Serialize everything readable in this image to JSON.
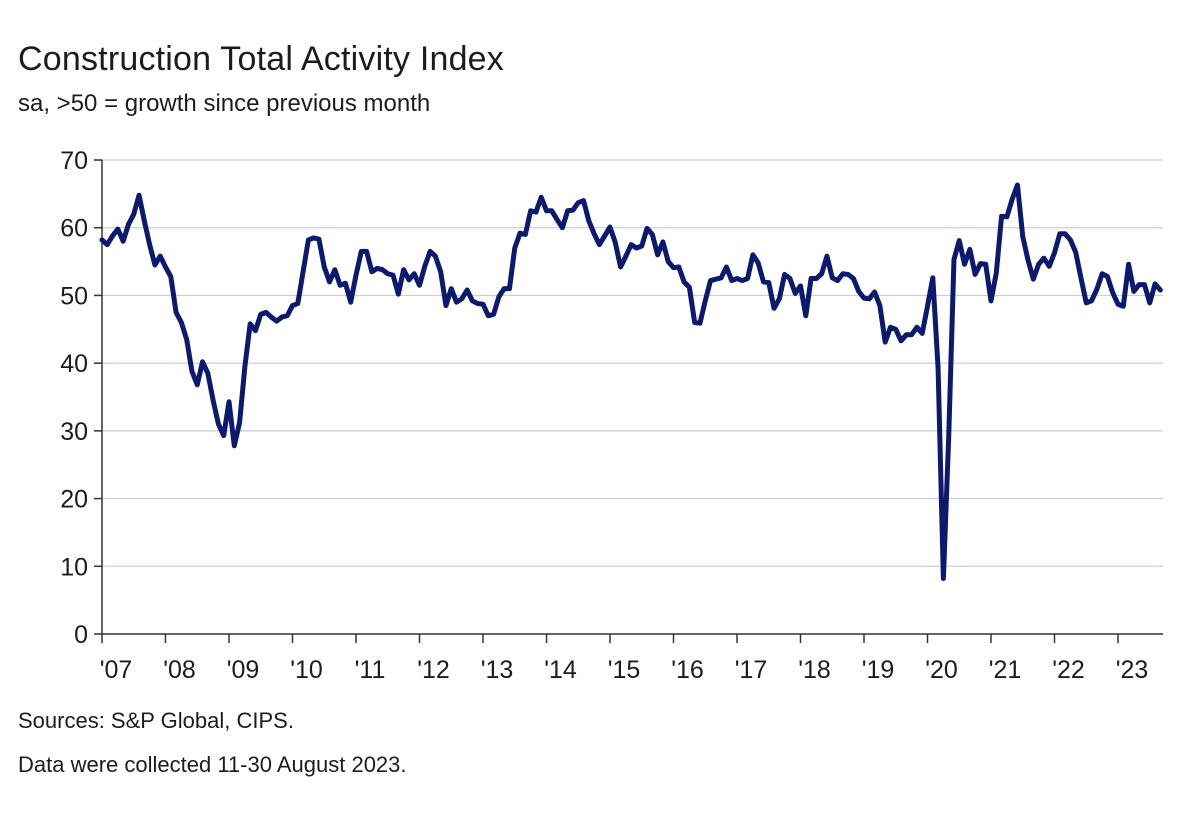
{
  "chart_data": {
    "type": "line",
    "title": "Construction Total Activity Index",
    "subtitle": "sa, >50 = growth since previous month",
    "ylim": [
      0,
      70
    ],
    "y_ticks": [
      0,
      10,
      20,
      30,
      40,
      50,
      60,
      70
    ],
    "x_start_year": 2007,
    "x_tick_labels": [
      "'07",
      "'08",
      "'09",
      "'10",
      "'11",
      "'12",
      "'13",
      "'14",
      "'15",
      "'16",
      "'17",
      "'18",
      "'19",
      "'20",
      "'21",
      "'22",
      "'23"
    ],
    "grid": "horizontal",
    "line_color": "#0b1a6e",
    "series": [
      {
        "name": "",
        "start": "2007-01",
        "frequency": "monthly",
        "values": [
          58.2,
          57.5,
          58.8,
          59.8,
          58.0,
          60.5,
          62.0,
          64.8,
          61.0,
          57.5,
          54.5,
          55.8,
          54.2,
          52.8,
          47.5,
          46.0,
          43.5,
          38.8,
          36.8,
          40.2,
          38.5,
          34.5,
          31.0,
          29.3,
          34.3,
          27.8,
          31.2,
          39.5,
          45.8,
          44.8,
          47.2,
          47.5,
          46.8,
          46.2,
          46.8,
          47.0,
          48.5,
          48.8,
          53.5,
          58.2,
          58.5,
          58.3,
          54.2,
          52.0,
          53.8,
          51.5,
          51.8,
          49.0,
          53.0,
          56.5,
          56.5,
          53.5,
          54.0,
          53.8,
          53.2,
          53.0,
          50.2,
          53.8,
          52.3,
          53.2,
          51.5,
          54.3,
          56.5,
          55.8,
          53.5,
          48.5,
          51.0,
          49.0,
          49.5,
          50.8,
          49.2,
          48.8,
          48.7,
          47.0,
          47.2,
          49.8,
          51.0,
          51.0,
          57.0,
          59.2,
          59.0,
          62.5,
          62.3,
          64.5,
          62.5,
          62.5,
          61.2,
          60.0,
          62.5,
          62.6,
          63.7,
          64.0,
          61.0,
          59.1,
          57.5,
          58.8,
          60.1,
          57.8,
          54.2,
          55.8,
          57.5,
          57.0,
          57.3,
          59.9,
          59.0,
          56.0,
          57.9,
          55.0,
          54.1,
          54.2,
          52.0,
          51.2,
          46.0,
          45.9,
          49.2,
          52.2,
          52.4,
          52.6,
          54.2,
          52.2,
          52.5,
          52.2,
          52.5,
          56.0,
          54.8,
          52.0,
          51.9,
          48.1,
          49.5,
          53.1,
          52.5,
          50.3,
          51.4,
          47.0,
          52.5,
          52.5,
          53.2,
          55.8,
          52.6,
          52.2,
          53.2,
          53.1,
          52.5,
          50.6,
          49.6,
          49.5,
          50.5,
          48.5,
          43.1,
          45.3,
          45.0,
          43.3,
          44.2,
          44.2,
          45.3,
          44.4,
          48.4,
          52.6,
          39.3,
          8.2,
          28.9,
          55.3,
          58.1,
          54.6,
          56.8,
          53.1,
          54.7,
          54.6,
          49.2,
          53.3,
          61.7,
          61.6,
          64.2,
          66.3,
          58.7,
          55.2,
          52.4,
          54.6,
          55.5,
          54.3,
          56.3,
          59.1,
          59.1,
          58.2,
          56.4,
          52.6,
          48.9,
          49.2,
          50.9,
          53.2,
          52.8,
          50.4,
          48.7,
          48.4,
          54.6,
          50.6,
          51.6,
          51.6,
          48.9,
          51.7,
          50.8
        ]
      }
    ]
  },
  "sources": {
    "line1": "Sources: S&P Global, CIPS.",
    "line2": "Data were collected 11-30 August 2023."
  }
}
